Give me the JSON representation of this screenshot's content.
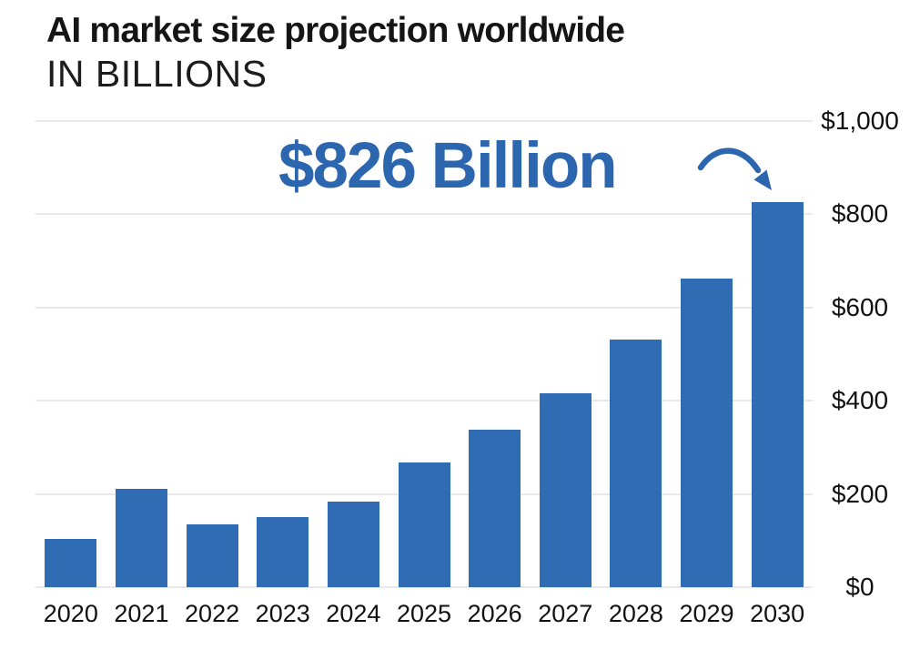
{
  "header": {
    "title": "AI market size projection worldwide",
    "subtitle": "IN BILLIONS"
  },
  "annotation": {
    "text": "$826 Billion",
    "points_to": "2030"
  },
  "chart_data": {
    "type": "bar",
    "title": "AI market size projection worldwide",
    "subtitle": "IN BILLIONS",
    "unit": "billion USD",
    "categories": [
      "2020",
      "2021",
      "2022",
      "2023",
      "2024",
      "2025",
      "2026",
      "2027",
      "2028",
      "2029",
      "2030"
    ],
    "values": [
      104,
      210,
      135,
      150,
      184,
      268,
      337,
      417,
      532,
      663,
      826
    ],
    "y_axis": {
      "side": "right",
      "min": 0,
      "max": 1000,
      "tick_interval": 200,
      "tick_values": [
        0,
        200,
        400,
        600,
        800,
        1000
      ],
      "tick_labels": [
        "$0",
        "$200",
        "$400",
        "$600",
        "$800",
        "$1,000"
      ]
    },
    "x_axis": {
      "side": "bottom",
      "tick_labels": [
        "2020",
        "2021",
        "2022",
        "2023",
        "2024",
        "2025",
        "2026",
        "2027",
        "2028",
        "2029",
        "2030"
      ]
    },
    "grid": true,
    "legend": "none",
    "annotation": {
      "text": "$826 Billion",
      "points_to": "2030",
      "arrow": "curved-down-right"
    },
    "colors": {
      "bar": "#2F6CB4",
      "accent": "#2B66AF",
      "gridline": "#E9E9E9",
      "axis_text": "#111111",
      "title_text": "#151515",
      "subtitle_text": "#1C1C1C",
      "background": "#FFFFFF"
    }
  }
}
